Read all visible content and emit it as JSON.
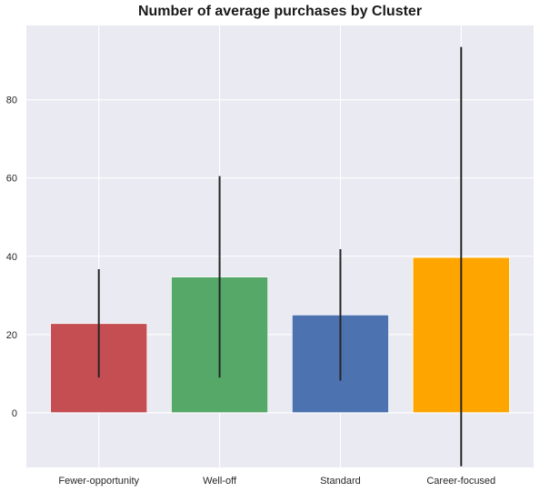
{
  "chart_data": {
    "type": "bar",
    "title": "Number of average purchases by Cluster",
    "xlabel": "",
    "ylabel": "",
    "categories": [
      "Fewer-opportunity",
      "Well-off",
      "Standard",
      "Career-focused"
    ],
    "values": [
      22.8,
      34.7,
      25.0,
      39.7
    ],
    "error_low": [
      9.0,
      9.0,
      8.2,
      -13.7
    ],
    "error_high": [
      36.7,
      60.5,
      41.8,
      93.5
    ],
    "colors": [
      "#c44e52",
      "#55a868",
      "#4c72b0",
      "#ffa500"
    ],
    "ylim": [
      -14,
      99
    ],
    "yticks": [
      0,
      20,
      40,
      60,
      80
    ],
    "grid": true,
    "background": "#eaeaf2",
    "error_color": "#262626"
  }
}
